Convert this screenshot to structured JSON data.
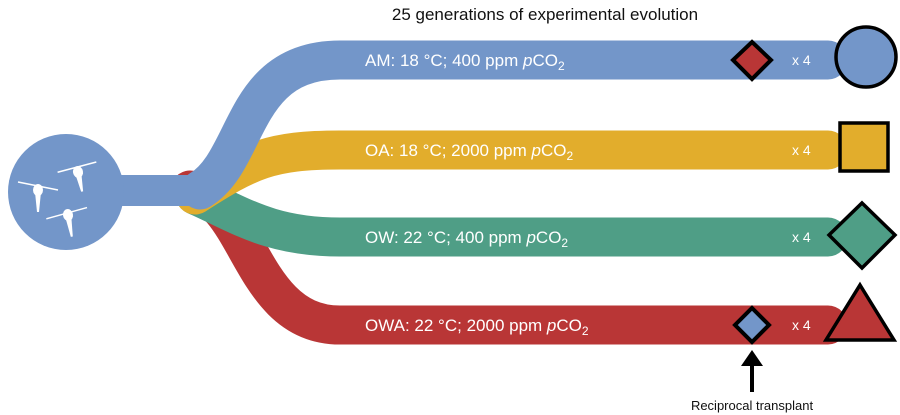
{
  "title": "25 generations of experimental evolution",
  "colors": {
    "AM": "#7396c9",
    "OA": "#e2ad2c",
    "OW": "#4f9e86",
    "OWA": "#b93636"
  },
  "treatments": [
    {
      "id": "AM",
      "prefix": "AM: 18 °C;  400 ppm ",
      "p": "p",
      "co": "CO",
      "sub": "2",
      "replicates": "x 4",
      "symbol": "circle"
    },
    {
      "id": "OA",
      "prefix": "OA: 18 °C; 2000 ppm ",
      "p": "p",
      "co": "CO",
      "sub": "2",
      "replicates": "x 4",
      "symbol": "square"
    },
    {
      "id": "OW",
      "prefix": "OW: 22 °C;  400 ppm ",
      "p": "p",
      "co": "CO",
      "sub": "2",
      "replicates": "x 4",
      "symbol": "diamond"
    },
    {
      "id": "OWA",
      "prefix": "OWA: 22 °C; 2000 ppm ",
      "p": "p",
      "co": "CO",
      "sub": "2",
      "replicates": "x 4",
      "symbol": "triangle"
    }
  ],
  "transplant_caption": "Reciprocal transplant"
}
